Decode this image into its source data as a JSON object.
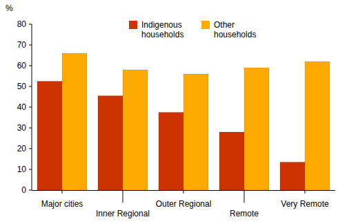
{
  "chart_data": {
    "type": "bar",
    "y_label": "%",
    "categories": [
      "Major cities",
      "Inner Regional",
      "Outer Regional",
      "Remote",
      "Very Remote"
    ],
    "series": [
      {
        "name": "Indigenous households",
        "color": "#cc3300",
        "values": [
          52.5,
          45.5,
          37.5,
          28,
          13.5
        ]
      },
      {
        "name": "Other households",
        "color": "#ffaa00",
        "values": [
          66,
          58,
          56,
          59,
          62
        ]
      }
    ],
    "ylim": [
      0,
      80
    ],
    "yticks": [
      0,
      10,
      20,
      30,
      40,
      50,
      60,
      70,
      80
    ],
    "grid": false,
    "legend": "top"
  }
}
